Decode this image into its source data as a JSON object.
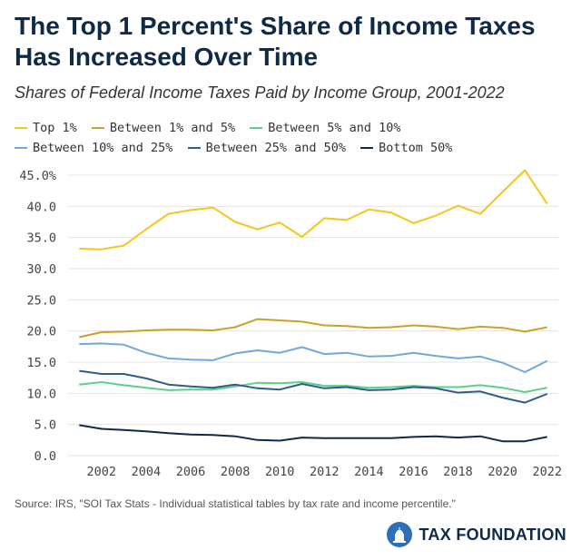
{
  "header": {
    "title": "The Top 1 Percent's Share of Income Taxes Has Increased Over Time",
    "subtitle": "Shares of Federal Income Taxes Paid by Income Group, 2001-2022"
  },
  "footer": {
    "source": "Source: IRS, \"SOI Tax Stats - Individual statistical tables by tax rate and income percentile.\"",
    "brand": "TAX FOUNDATION"
  },
  "chart_data": {
    "type": "line",
    "x": [
      2001,
      2002,
      2003,
      2004,
      2005,
      2006,
      2007,
      2008,
      2009,
      2010,
      2011,
      2012,
      2013,
      2014,
      2015,
      2016,
      2017,
      2018,
      2019,
      2020,
      2021,
      2022
    ],
    "xticks": [
      2002,
      2004,
      2006,
      2008,
      2010,
      2012,
      2014,
      2016,
      2018,
      2020,
      2022
    ],
    "xlim": [
      2000.5,
      2022.5
    ],
    "ylim": [
      0,
      45
    ],
    "yticks": [
      0,
      5,
      10,
      15,
      20,
      25,
      30,
      35,
      40,
      45
    ],
    "ytick_labels": [
      "0.0",
      "5.0",
      "10.0",
      "15.0",
      "20.0",
      "25.0",
      "30.0",
      "35.0",
      "40.0",
      "45.0%"
    ],
    "grid": true,
    "legend_position": "top",
    "series": [
      {
        "name": "Top 1%",
        "color": "#f5c518",
        "values": [
          33.2,
          33.1,
          33.7,
          36.3,
          38.8,
          39.4,
          39.8,
          37.5,
          36.3,
          37.4,
          35.1,
          38.1,
          37.8,
          39.5,
          39.0,
          37.3,
          38.5,
          40.1,
          38.8,
          42.3,
          45.8,
          40.4
        ]
      },
      {
        "name": "Between 1% and 5%",
        "color": "#c9a227",
        "values": [
          19.0,
          19.8,
          19.9,
          20.1,
          20.2,
          20.2,
          20.1,
          20.6,
          21.9,
          21.7,
          21.5,
          20.9,
          20.8,
          20.5,
          20.6,
          20.9,
          20.7,
          20.3,
          20.7,
          20.5,
          19.9,
          20.6
        ]
      },
      {
        "name": "Between 5% and 10%",
        "color": "#5ad08a",
        "values": [
          11.4,
          11.8,
          11.3,
          10.9,
          10.5,
          10.6,
          10.6,
          11.1,
          11.7,
          11.6,
          11.8,
          11.2,
          11.2,
          10.9,
          11.0,
          11.2,
          11.0,
          11.0,
          11.3,
          10.9,
          10.2,
          10.9
        ]
      },
      {
        "name": "Between 10% and 25%",
        "color": "#6fa8dc",
        "values": [
          17.9,
          18.0,
          17.8,
          16.5,
          15.6,
          15.4,
          15.3,
          16.4,
          16.9,
          16.5,
          17.4,
          16.3,
          16.5,
          15.9,
          16.0,
          16.5,
          16.0,
          15.6,
          15.9,
          14.9,
          13.4,
          15.2
        ]
      },
      {
        "name": "Between 25% and 50%",
        "color": "#2e5c8a",
        "values": [
          13.6,
          13.1,
          13.1,
          12.4,
          11.4,
          11.1,
          10.9,
          11.4,
          10.8,
          10.6,
          11.5,
          10.8,
          11.0,
          10.5,
          10.6,
          11.0,
          10.8,
          10.1,
          10.3,
          9.3,
          8.5,
          9.9
        ]
      },
      {
        "name": "Bottom 50%",
        "color": "#0e2a47",
        "values": [
          4.9,
          4.3,
          4.1,
          3.9,
          3.6,
          3.4,
          3.3,
          3.1,
          2.5,
          2.4,
          2.9,
          2.8,
          2.8,
          2.8,
          2.8,
          3.0,
          3.1,
          2.9,
          3.1,
          2.3,
          2.3,
          3.0
        ]
      }
    ]
  }
}
